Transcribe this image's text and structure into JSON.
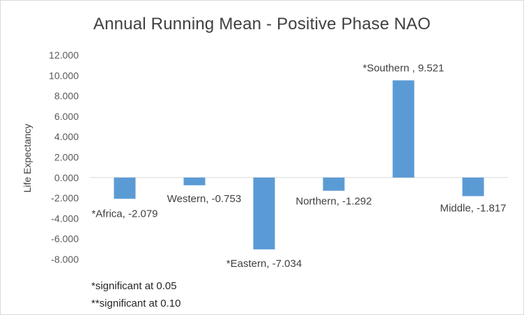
{
  "chart_data": {
    "type": "bar",
    "title": "Annual Running Mean - Positive Phase NAO",
    "xlabel": "",
    "ylabel": "Life Expectancy",
    "ylim": [
      -8,
      12
    ],
    "yticks": [
      12,
      10,
      8,
      6,
      4,
      2,
      0,
      -2,
      -4,
      -6,
      -8
    ],
    "ytick_labels": [
      "12.000",
      "10.000",
      "8.000",
      "6.000",
      "4.000",
      "2.000",
      "0.000",
      "-2.000",
      "-4.000",
      "-6.000",
      "-8.000"
    ],
    "categories": [
      "*Africa",
      "Western",
      "*Eastern",
      "Northern",
      "*Southern",
      "Middle"
    ],
    "values": [
      -2.079,
      -0.753,
      -7.034,
      -1.292,
      9.521,
      -1.817
    ],
    "data_labels": [
      "*Africa, -2.079",
      "Western, -0.753",
      "*Eastern, -7.034",
      "Northern, -1.292",
      "*Southern , 9.521",
      "Middle, -1.817"
    ],
    "bar_color": "#5b9bd5",
    "grid": false,
    "legend": "none"
  },
  "notes": {
    "line1": "*significant at 0.05",
    "line2": "**significant at 0.10"
  }
}
